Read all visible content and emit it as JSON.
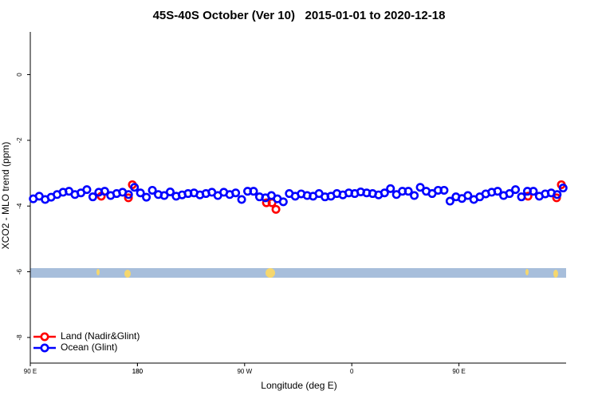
{
  "chart_data": {
    "type": "scatter",
    "title": "45S-40S October (Ver 10)   2015-01-01 to 2020-12-18",
    "xlabel": "Longitude (deg E)",
    "ylabel": "XCO2 - MLO trend (ppm)",
    "xlim": [
      90,
      540
    ],
    "xticks": [
      {
        "value": 90,
        "label": "90 E"
      },
      180,
      {
        "value": 270,
        "label": "90 W"
      },
      {
        "value": 360,
        "label": "0"
      },
      {
        "value": 450,
        "label": "90 E"
      },
      180.0001
    ],
    "ylim": [
      -8.95,
      1.3
    ],
    "yticks": [
      0,
      -2,
      -4,
      -6,
      -8
    ],
    "legend": "bottom-left",
    "series": [
      {
        "name": "Land (Nadir&Glint)",
        "color": "#ff0000",
        "x": [
          149.6,
          172.4,
          175.7,
          288.3,
          293,
          296.3,
          508,
          532,
          536
        ],
        "values": [
          -3.7,
          -3.75,
          -3.35,
          -3.9,
          -3.9,
          -4.1,
          -3.7,
          -3.75,
          -3.35
        ]
      },
      {
        "name": "Ocean (Glint)",
        "color": "#0000ff",
        "x": [
          92.5,
          97.5,
          102.5,
          107.5,
          112.5,
          117.5,
          122.5,
          127.5,
          132.5,
          137.5,
          142.5,
          147.5,
          152.5,
          157.5,
          162.5,
          167.5,
          172.5,
          177.5,
          182.5,
          187.5,
          192.5,
          197.5,
          202.5,
          207.5,
          212.5,
          217.5,
          222.5,
          227.5,
          232.5,
          237.5,
          242.5,
          247.5,
          252.5,
          257.5,
          262.5,
          267.5,
          272.5,
          277.5,
          282.5,
          287.5,
          292.5,
          297.5,
          302.5,
          307.5,
          312.5,
          317.5,
          322.5,
          327.5,
          332.5,
          337.5,
          342.5,
          347.5,
          352.5,
          357.5,
          362.5,
          367.5,
          372.5,
          377.5,
          382.5,
          387.5,
          392.5,
          397.5,
          402.5,
          407.5,
          412.5,
          417.5,
          422.5,
          427.5,
          432.5,
          437.5,
          442.5,
          447.5,
          452.5,
          457.5,
          462.5,
          467.5,
          472.5,
          477.5,
          482.5,
          487.5,
          492.5,
          497.5,
          502.5,
          507.5,
          512.5,
          517.5,
          522.5,
          527.5,
          532.5,
          537.5
        ],
        "values": [
          -3.78,
          -3.7,
          -3.8,
          -3.73,
          -3.65,
          -3.58,
          -3.55,
          -3.65,
          -3.6,
          -3.5,
          -3.72,
          -3.58,
          -3.55,
          -3.68,
          -3.62,
          -3.58,
          -3.65,
          -3.43,
          -3.6,
          -3.73,
          -3.52,
          -3.65,
          -3.68,
          -3.57,
          -3.7,
          -3.66,
          -3.62,
          -3.6,
          -3.66,
          -3.62,
          -3.58,
          -3.68,
          -3.58,
          -3.65,
          -3.6,
          -3.8,
          -3.55,
          -3.55,
          -3.72,
          -3.75,
          -3.68,
          -3.78,
          -3.87,
          -3.62,
          -3.7,
          -3.63,
          -3.68,
          -3.7,
          -3.62,
          -3.72,
          -3.7,
          -3.62,
          -3.66,
          -3.6,
          -3.62,
          -3.57,
          -3.6,
          -3.62,
          -3.66,
          -3.6,
          -3.47,
          -3.65,
          -3.55,
          -3.55,
          -3.68,
          -3.43,
          -3.55,
          -3.62,
          -3.52,
          -3.52,
          -3.85,
          -3.72,
          -3.77,
          -3.68,
          -3.8,
          -3.72,
          -3.63,
          -3.58,
          -3.55,
          -3.68,
          -3.62,
          -3.5,
          -3.72,
          -3.55,
          -3.55,
          -3.7,
          -3.63,
          -3.6,
          -3.65,
          -3.45
        ]
      }
    ]
  }
}
